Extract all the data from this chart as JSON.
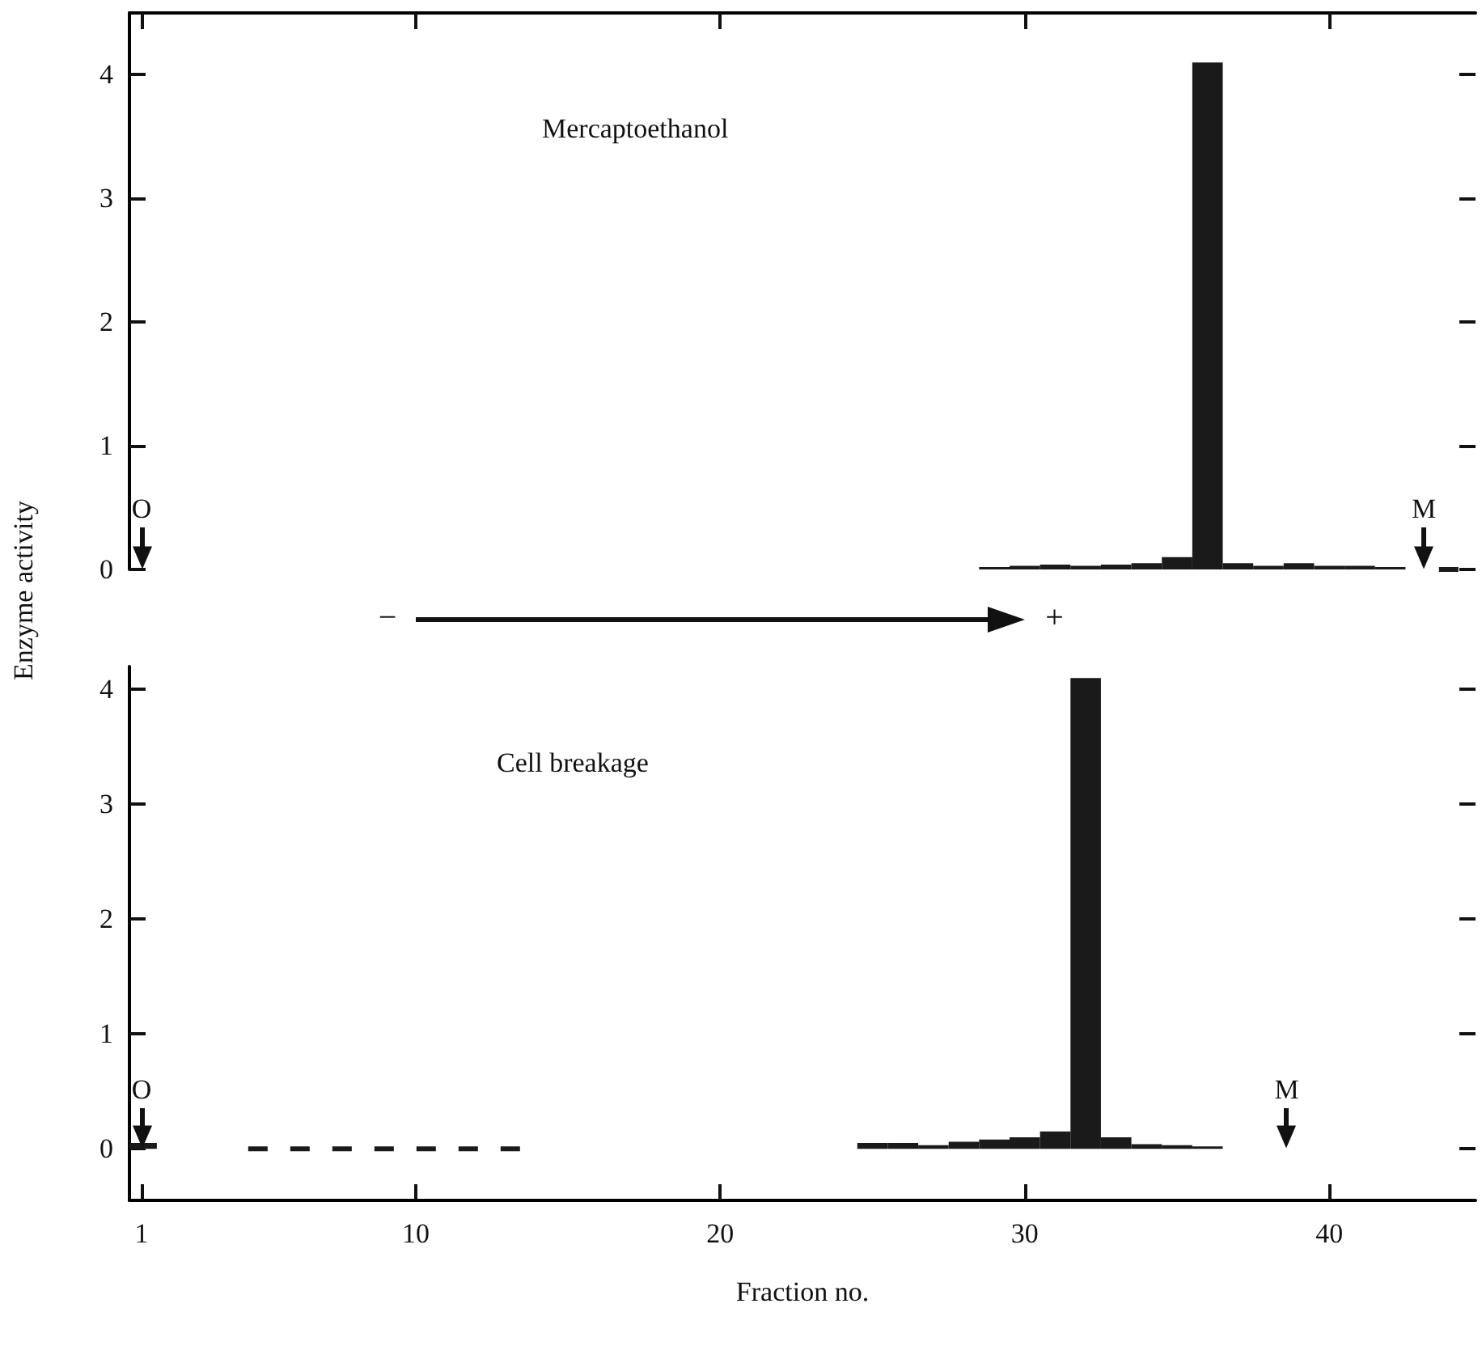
{
  "chart_data": [
    {
      "type": "histogram",
      "title": "Mercaptoethanol",
      "ylabel": "Enzyme activity",
      "xlim": [
        0.6,
        44.8
      ],
      "xticks": [
        1,
        10,
        20,
        30,
        40
      ],
      "ylim": [
        0,
        4.5
      ],
      "yticks": [
        0,
        1,
        2,
        3,
        4
      ],
      "tick_labels": "y",
      "grid": false,
      "annotations": [
        "−",
        "+"
      ],
      "ref_lines": [
        {
          "axis": "x",
          "value": 1,
          "label": "O"
        },
        {
          "axis": "x",
          "value": 43.1,
          "label": "M"
        }
      ],
      "series": [
        {
          "color": "#1a1a1a",
          "bins": [
            28.5,
            29.5,
            30.5,
            31.5,
            32.5,
            33.5,
            34.5,
            35.5,
            36.5,
            37.5,
            38.5,
            39.5,
            40.5,
            41.5,
            42.5
          ],
          "values": [
            0.02,
            0.03,
            0.04,
            0.03,
            0.04,
            0.05,
            0.1,
            4.1,
            0.05,
            0.03,
            0.05,
            0.03,
            0.03,
            0.02
          ]
        },
        {
          "type": "line",
          "color": "#1a1a1a",
          "line_style": "dashed",
          "x": [
            43.6,
            44.8
          ],
          "values": [
            0,
            0
          ]
        }
      ]
    },
    {
      "type": "histogram",
      "title": "Cell breakage",
      "xlabel": "Fraction no.",
      "xlim": [
        0.6,
        44.8
      ],
      "xticks": [
        1,
        10,
        20,
        30,
        40
      ],
      "ylim": [
        -0.45,
        4.2
      ],
      "yticks": [
        0,
        1,
        2,
        3,
        4
      ],
      "grid": false,
      "ref_lines": [
        {
          "axis": "x",
          "value": 1,
          "label": "O"
        },
        {
          "axis": "x",
          "value": 38.6,
          "label": "M"
        }
      ],
      "series": [
        {
          "color": "#1a1a1a",
          "bins": [
            0.6,
            1.5
          ],
          "values": [
            0.05
          ]
        },
        {
          "color": "#1a1a1a",
          "bins": [
            24.5,
            25.5,
            26.5,
            27.5,
            28.5,
            29.5,
            30.5,
            31.5,
            32.5,
            33.5,
            34.5,
            35.5,
            36.5
          ],
          "values": [
            0.05,
            0.05,
            0.03,
            0.06,
            0.08,
            0.1,
            0.15,
            4.1,
            0.1,
            0.04,
            0.03,
            0.02
          ]
        },
        {
          "type": "line",
          "color": "#1a1a1a",
          "line_style": "dashed",
          "x": [
            4.5,
            13.5
          ],
          "values": [
            0,
            0
          ]
        }
      ]
    }
  ]
}
